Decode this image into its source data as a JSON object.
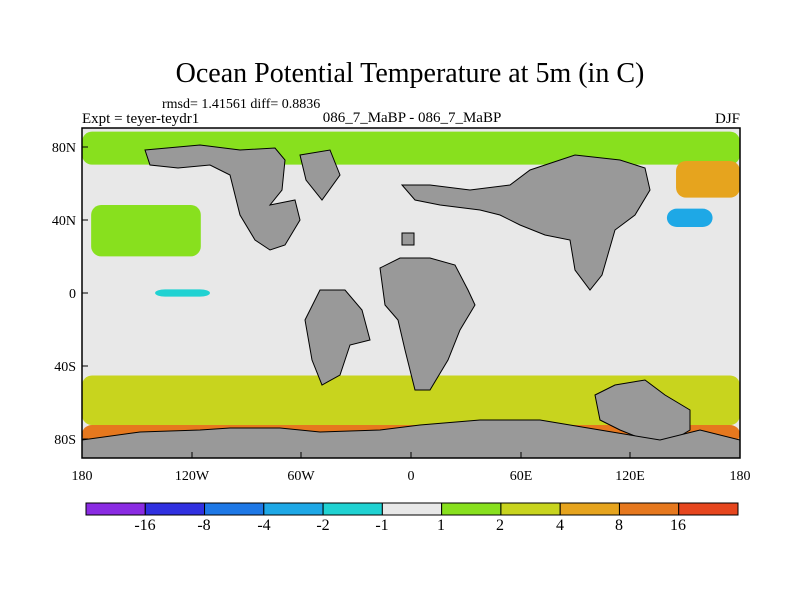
{
  "chart_data": {
    "type": "heatmap",
    "title": "Ocean Potential Temperature at 5m (in C)",
    "stats_text": "rmsd= 1.41561 diff= 0.8836",
    "experiment_text": "Expt = teyer-teydr1",
    "subtitle": "086_7_MaBP - 086_7_MaBP",
    "season": "DJF",
    "x_range": [
      -180,
      180
    ],
    "y_range": [
      -90,
      90
    ],
    "x_ticks": [
      {
        "value": -180,
        "label": "180"
      },
      {
        "value": -120,
        "label": "120W"
      },
      {
        "value": -60,
        "label": "60W"
      },
      {
        "value": 0,
        "label": "0"
      },
      {
        "value": 60,
        "label": "60E"
      },
      {
        "value": 120,
        "label": "120E"
      },
      {
        "value": 180,
        "label": "180"
      }
    ],
    "y_ticks": [
      {
        "value": 80,
        "label": "80N"
      },
      {
        "value": 40,
        "label": "40N"
      },
      {
        "value": 0,
        "label": "0"
      },
      {
        "value": -40,
        "label": "40S"
      },
      {
        "value": -80,
        "label": "80S"
      }
    ],
    "colorbar": {
      "boundaries": [
        "-16",
        "-8",
        "-4",
        "-2",
        "-1",
        "1",
        "2",
        "4",
        "8",
        "16"
      ],
      "colors": [
        "#8a2be2",
        "#3030e0",
        "#1e78e6",
        "#1ea8e6",
        "#20d2d2",
        "#e8e8e8",
        "#88e01e",
        "#c8d41e",
        "#e6a41e",
        "#e6781e",
        "#e6461e"
      ]
    },
    "background_value_color": "#e8e8e8",
    "land_color": "#999999",
    "regions": [
      {
        "name": "north-pacific-band",
        "color": "#88e01e",
        "lon_range": [
          -175,
          -115
        ],
        "lat_range": [
          20,
          48
        ]
      },
      {
        "name": "arctic-band",
        "color": "#88e01e",
        "lon_range": [
          -180,
          180
        ],
        "lat_range": [
          70,
          88
        ]
      },
      {
        "name": "north-atlantic-warm",
        "color": "#e6a41e",
        "lon_range": [
          145,
          180
        ],
        "lat_range": [
          52,
          72
        ]
      },
      {
        "name": "kuroshio-cold-patch",
        "color": "#1ea8e6",
        "lon_range": [
          140,
          165
        ],
        "lat_range": [
          36,
          46
        ]
      },
      {
        "name": "equatorial-cold",
        "color": "#20d2d2",
        "lon_range": [
          -140,
          -110
        ],
        "lat_range": [
          -2,
          2
        ]
      },
      {
        "name": "southern-ocean-band",
        "color": "#c8d41e",
        "lon_range": [
          -180,
          180
        ],
        "lat_range": [
          -72,
          -45
        ]
      },
      {
        "name": "antarctic-warm",
        "color": "#e6781e",
        "lon_range": [
          -180,
          180
        ],
        "lat_range": [
          -82,
          -72
        ]
      }
    ]
  }
}
